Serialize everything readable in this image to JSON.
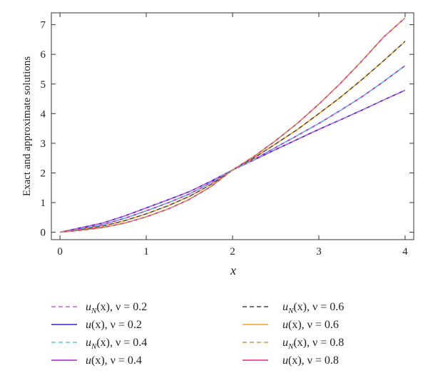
{
  "chart_data": {
    "type": "line",
    "xlabel": "x",
    "ylabel": "Exact and approximate solutions",
    "xlim": [
      -0.1,
      4.1
    ],
    "ylim": [
      -0.25,
      7.4
    ],
    "x_ticks": [
      0,
      1,
      2,
      3,
      4
    ],
    "y_ticks": [
      0,
      1,
      2,
      3,
      4,
      5,
      6,
      7
    ],
    "grid": false,
    "legend_placement": "bottom",
    "x": [
      0,
      0.25,
      0.5,
      0.75,
      1,
      1.25,
      1.5,
      1.75,
      2,
      2.25,
      2.5,
      2.75,
      3,
      3.25,
      3.5,
      3.75,
      4
    ],
    "series": [
      {
        "name": "u_N(x), ν = 0.2",
        "label_main": "u",
        "label_sub": "N",
        "label_rest": "(x), ν = 0.2",
        "color": "#cc66dd",
        "dash": true,
        "values": [
          0,
          0.157,
          0.315,
          0.55,
          0.82,
          1.09,
          1.37,
          1.72,
          2.1,
          2.44,
          2.79,
          3.13,
          3.47,
          3.79,
          4.12,
          4.46,
          4.79
        ]
      },
      {
        "name": "u(x), ν = 0.2",
        "label_main": "u",
        "label_sub": "",
        "label_rest": "(x), ν = 0.2",
        "color": "#3a1fd8",
        "dash": false,
        "values": [
          0,
          0.157,
          0.315,
          0.55,
          0.82,
          1.09,
          1.37,
          1.72,
          2.1,
          2.44,
          2.79,
          3.13,
          3.47,
          3.79,
          4.12,
          4.46,
          4.79
        ]
      },
      {
        "name": "u_N(x), ν = 0.4",
        "label_main": "u",
        "label_sub": "N",
        "label_rest": "(x), ν = 0.4",
        "color": "#5cc8e0",
        "dash": true,
        "values": [
          0,
          0.12,
          0.26,
          0.47,
          0.72,
          0.99,
          1.29,
          1.67,
          2.1,
          2.46,
          2.86,
          3.26,
          3.67,
          4.11,
          4.57,
          5.08,
          5.62
        ]
      },
      {
        "name": "u(x), ν = 0.4",
        "label_main": "u",
        "label_sub": "",
        "label_rest": "(x), ν = 0.4",
        "color": "#b022d6",
        "dash": false,
        "values": [
          0,
          0.12,
          0.26,
          0.47,
          0.72,
          0.99,
          1.29,
          1.67,
          2.1,
          2.46,
          2.86,
          3.26,
          3.67,
          4.11,
          4.57,
          5.08,
          5.62
        ]
      },
      {
        "name": "u_N(x), ν = 0.6",
        "label_main": "u",
        "label_sub": "N",
        "label_rest": "(x), ν = 0.6",
        "color": "#444444",
        "dash": true,
        "values": [
          0,
          0.09,
          0.21,
          0.39,
          0.62,
          0.89,
          1.21,
          1.61,
          2.1,
          2.51,
          2.98,
          3.46,
          4.0,
          4.55,
          5.15,
          5.78,
          6.44
        ]
      },
      {
        "name": "u(x), ν = 0.6",
        "label_main": "u",
        "label_sub": "",
        "label_rest": "(x), ν = 0.6",
        "color": "#f0a020",
        "dash": false,
        "values": [
          0,
          0.09,
          0.21,
          0.39,
          0.62,
          0.89,
          1.21,
          1.61,
          2.1,
          2.51,
          2.98,
          3.46,
          4.0,
          4.55,
          5.15,
          5.78,
          6.44
        ]
      },
      {
        "name": "u_N(x), ν = 0.8",
        "label_main": "u",
        "label_sub": "N",
        "label_rest": "(x), ν = 0.8",
        "color": "#c89a4a",
        "dash": true,
        "values": [
          0,
          0.07,
          0.16,
          0.31,
          0.52,
          0.78,
          1.11,
          1.54,
          2.1,
          2.56,
          3.09,
          3.67,
          4.32,
          5.02,
          5.78,
          6.58,
          7.23
        ]
      },
      {
        "name": "u(x), ν = 0.8",
        "label_main": "u",
        "label_sub": "",
        "label_rest": "(x), ν = 0.8",
        "color": "#e8248a",
        "dash": false,
        "values": [
          0,
          0.07,
          0.16,
          0.31,
          0.52,
          0.78,
          1.11,
          1.54,
          2.1,
          2.56,
          3.09,
          3.67,
          4.32,
          5.02,
          5.78,
          6.58,
          7.23
        ]
      }
    ]
  }
}
